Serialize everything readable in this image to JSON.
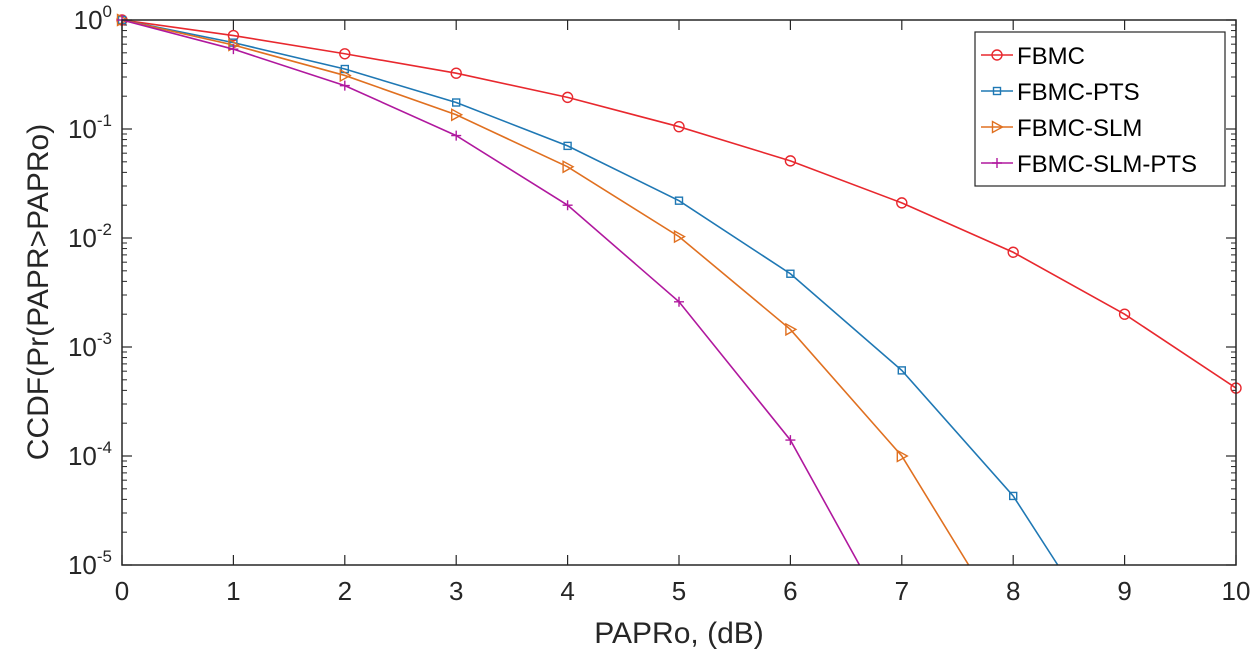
{
  "chart_data": {
    "type": "line",
    "title": "",
    "xlabel": "PAPRo, (dB)",
    "ylabel": "CCDF(Pr(PAPR>PAPRo)",
    "yscale": "log",
    "xlim": [
      0,
      10
    ],
    "ylim": [
      1e-05,
      1
    ],
    "x_ticks": [
      0,
      1,
      2,
      3,
      4,
      5,
      6,
      7,
      8,
      9,
      10
    ],
    "x_tick_labels": [
      "0",
      "1",
      "2",
      "3",
      "4",
      "5",
      "6",
      "7",
      "8",
      "9",
      "10"
    ],
    "y_ticks": [
      {
        "value": 1,
        "base": "10",
        "exp": "0"
      },
      {
        "value": 0.1,
        "base": "10",
        "exp": "-1"
      },
      {
        "value": 0.01,
        "base": "10",
        "exp": "-2"
      },
      {
        "value": 0.001,
        "base": "10",
        "exp": "-3"
      },
      {
        "value": 0.0001,
        "base": "10",
        "exp": "-4"
      },
      {
        "value": 1e-05,
        "base": "10",
        "exp": "-5"
      }
    ],
    "legend_position": "top-right",
    "series": [
      {
        "name": "FBMC",
        "color": "#e8282e",
        "marker": "circle",
        "points": [
          [
            0,
            1
          ],
          [
            1,
            0.72
          ],
          [
            2,
            0.49
          ],
          [
            3,
            0.325
          ],
          [
            4,
            0.195
          ],
          [
            5,
            0.105
          ],
          [
            6,
            0.051
          ],
          [
            7,
            0.021
          ],
          [
            8,
            0.0074
          ],
          [
            9,
            0.002
          ],
          [
            10,
            0.00042
          ]
        ]
      },
      {
        "name": "FBMC-PTS",
        "color": "#1f78b4",
        "marker": "square",
        "points": [
          [
            0,
            1
          ],
          [
            1,
            0.62
          ],
          [
            2,
            0.355
          ],
          [
            3,
            0.175
          ],
          [
            4,
            0.07
          ],
          [
            5,
            0.022
          ],
          [
            6,
            0.0047
          ],
          [
            7,
            0.00061
          ],
          [
            8,
            4.3e-05
          ],
          [
            8.4,
            1e-05
          ]
        ]
      },
      {
        "name": "FBMC-SLM",
        "color": "#e07020",
        "marker": "triangle-right",
        "points": [
          [
            0,
            1
          ],
          [
            1,
            0.59
          ],
          [
            2,
            0.31
          ],
          [
            3,
            0.135
          ],
          [
            4,
            0.045
          ],
          [
            5,
            0.0103
          ],
          [
            6,
            0.00145
          ],
          [
            7,
            0.0001
          ],
          [
            7.6,
            1e-05
          ]
        ]
      },
      {
        "name": "FBMC-SLM-PTS",
        "color": "#b0189e",
        "marker": "plus",
        "points": [
          [
            0,
            1
          ],
          [
            1,
            0.54
          ],
          [
            2,
            0.25
          ],
          [
            3,
            0.087
          ],
          [
            4,
            0.02
          ],
          [
            5,
            0.0026
          ],
          [
            6,
            0.00014
          ],
          [
            6.62,
            1e-05
          ]
        ]
      }
    ]
  }
}
